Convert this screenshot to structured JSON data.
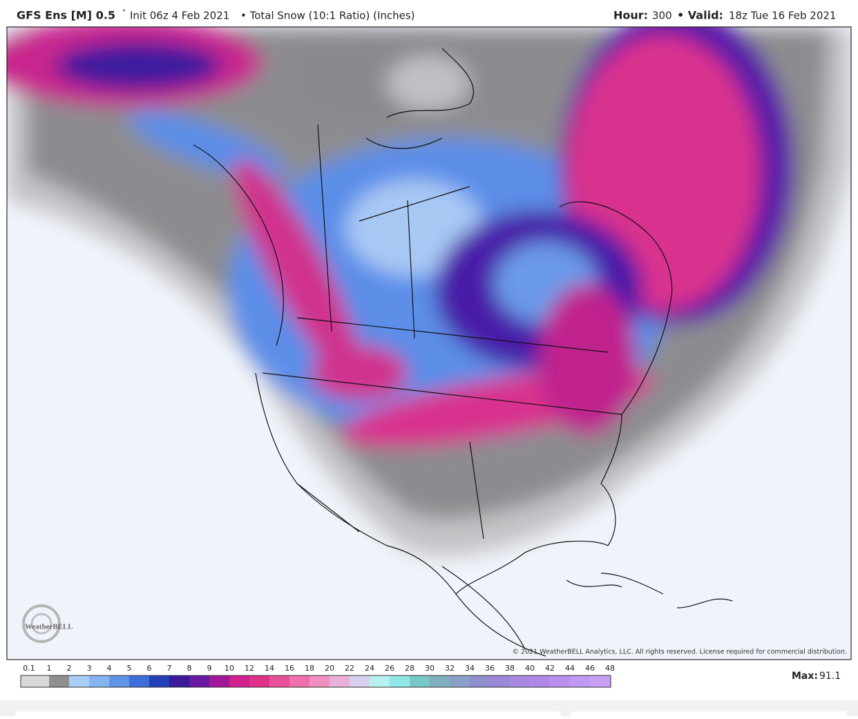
{
  "header": {
    "model": "GFS Ens [M] 0.5",
    "degree": "°",
    "init": "Init 06z 4 Feb 2021",
    "product": "• Total Snow (10:1 Ratio) (Inches)",
    "hour_label": "Hour:",
    "hour": "300",
    "valid_label": "• Valid:",
    "valid": "18z Tue 16 Feb 2021"
  },
  "map": {
    "logo": "WeatherBELL",
    "copyright": "© 2021 WeatherBELL Analytics, LLC. All rights reserved. License required for commercial distribution."
  },
  "legend": {
    "labels": [
      "0.1",
      "1",
      "2",
      "3",
      "4",
      "5",
      "6",
      "7",
      "8",
      "9",
      "10",
      "12",
      "14",
      "16",
      "18",
      "20",
      "22",
      "24",
      "26",
      "28",
      "30",
      "32",
      "34",
      "36",
      "38",
      "40",
      "42",
      "44",
      "46",
      "48"
    ],
    "colors": [
      "#d9d9d9",
      "#8f8f8f",
      "#a9cdf5",
      "#86b4f0",
      "#5e95e6",
      "#3c6fd8",
      "#2340b8",
      "#3a1a9a",
      "#6a1aa0",
      "#a0189a",
      "#d0208e",
      "#e0308a",
      "#e8509a",
      "#ee70ac",
      "#f090c0",
      "#e8b0d8",
      "#d8d0ee",
      "#b8f0f0",
      "#90e6e6",
      "#78c8c8",
      "#80b0c0",
      "#8aa0c8",
      "#9090d0",
      "#9c88d8",
      "#a888e0",
      "#b088e8",
      "#b890ee",
      "#c09af2",
      "#c8a0f4"
    ],
    "max_label": "Max:",
    "max": "91.1"
  }
}
